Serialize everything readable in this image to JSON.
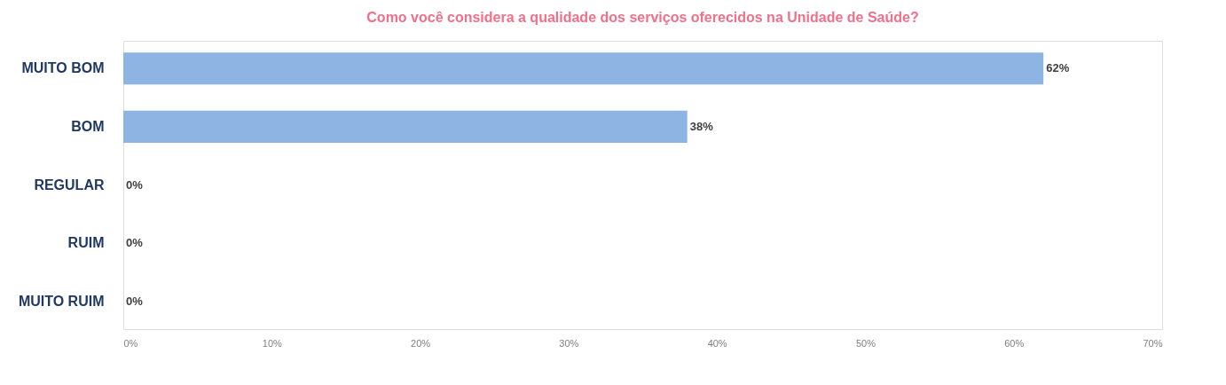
{
  "chart_data": {
    "type": "bar",
    "orientation": "horizontal",
    "title": "Como você considera a qualidade dos serviços oferecidos na Unidade de Saúde?",
    "categories": [
      "MUITO BOM",
      "BOM",
      "REGULAR",
      "RUIM",
      "MUITO RUIM"
    ],
    "values": [
      62,
      38,
      0,
      0,
      0
    ],
    "color": "#8db4e2",
    "value_labels": [
      "62%",
      "38%",
      "0%",
      "0%",
      "0%"
    ],
    "xlim": [
      0,
      70
    ],
    "xticks": [
      {
        "value": 0,
        "label": "0%"
      },
      {
        "value": 10,
        "label": "10%"
      },
      {
        "value": 20,
        "label": "20%"
      },
      {
        "value": 30,
        "label": "30%"
      },
      {
        "value": 40,
        "label": "40%"
      },
      {
        "value": 50,
        "label": "50%"
      },
      {
        "value": 60,
        "label": "60%"
      },
      {
        "value": 70,
        "label": "70%"
      }
    ],
    "grid": false
  }
}
